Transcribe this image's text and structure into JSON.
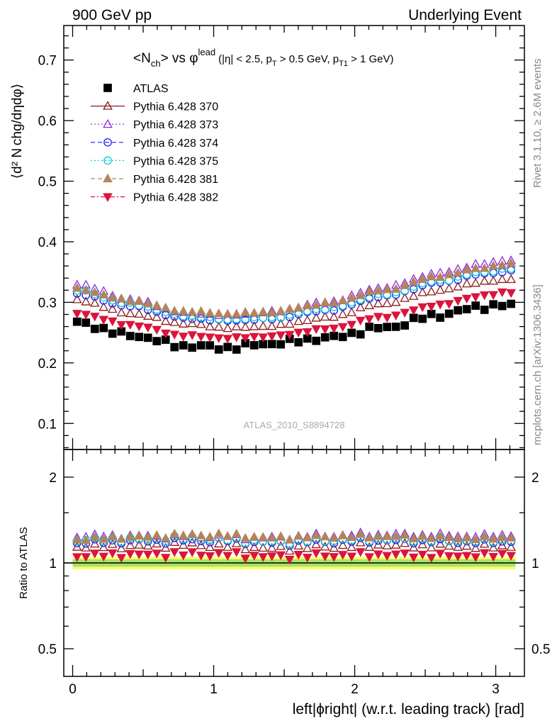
{
  "header": {
    "left": "900 GeV pp",
    "right": "Underlying Event"
  },
  "side_text": {
    "rivet": "Rivet 3.1.10, ≥ 2.6M events",
    "mcplots": "mcplots.cern.ch [arXiv:1306.3436]"
  },
  "watermark": "ATLAS_2010_S8894728",
  "plot_title": {
    "part1": "<N",
    "part1_sub": "ch",
    "part2": "> vs φ",
    "part2_sup": "lead",
    "cuts": "(|η| < 2.5, p",
    "cut_sub1": "T",
    "cuts2": " > 0.5 GeV, p",
    "cut_sub2": "T1",
    "cuts3": " > 1 GeV)"
  },
  "axes": {
    "ylabel_main": "⟨d² N chg/dηdφ⟩",
    "ylabel_ratio": "Ratio to ATLAS",
    "xlabel": "left|ϕright| (w.r.t. leading track) [rad]",
    "main_yticks": [
      "0.1",
      "0.2",
      "0.3",
      "0.4",
      "0.5",
      "0.6",
      "0.7"
    ],
    "ratio_yticks": [
      "0.5",
      "1",
      "2"
    ],
    "xticks": [
      "0",
      "1",
      "2",
      "3"
    ]
  },
  "chart_data": {
    "type": "scatter",
    "x_range": [
      -0.0628,
      3.2032
    ],
    "main_ylim": [
      0.057,
      0.757
    ],
    "ratio_ylim": [
      0.4,
      2.5
    ],
    "ratio_log": true,
    "grid": false,
    "legend_placement": "top-left",
    "x_start": 0.0314,
    "x_step": 0.0628,
    "n_points": 50,
    "series": [
      {
        "name": "ATLAS",
        "color": "#000000",
        "marker": "square",
        "line": "none",
        "control": [
          [
            0.03,
            0.266
          ],
          [
            0.4,
            0.246
          ],
          [
            0.8,
            0.228
          ],
          [
            1.1,
            0.225
          ],
          [
            1.4,
            0.232
          ],
          [
            1.8,
            0.241
          ],
          [
            2.2,
            0.258
          ],
          [
            2.6,
            0.279
          ],
          [
            2.9,
            0.293
          ],
          [
            3.11,
            0.295
          ]
        ]
      },
      {
        "name": "Pythia 6.428 370",
        "color": "#8b1a1a",
        "marker": "triangle-open",
        "line": "solid",
        "control": [
          [
            0.03,
            0.304
          ],
          [
            0.4,
            0.282
          ],
          [
            0.8,
            0.265
          ],
          [
            1.1,
            0.258
          ],
          [
            1.4,
            0.261
          ],
          [
            1.8,
            0.275
          ],
          [
            2.2,
            0.298
          ],
          [
            2.6,
            0.32
          ],
          [
            2.9,
            0.334
          ],
          [
            3.11,
            0.338
          ]
        ]
      },
      {
        "name": "Pythia 6.428 373",
        "color": "#8a2be2",
        "marker": "triangle-open",
        "line": "dotted",
        "control": [
          [
            0.03,
            0.33
          ],
          [
            0.4,
            0.305
          ],
          [
            0.8,
            0.283
          ],
          [
            1.1,
            0.279
          ],
          [
            1.4,
            0.284
          ],
          [
            1.8,
            0.3
          ],
          [
            2.2,
            0.324
          ],
          [
            2.6,
            0.348
          ],
          [
            2.9,
            0.363
          ],
          [
            3.11,
            0.37
          ]
        ]
      },
      {
        "name": "Pythia 6.428 374",
        "color": "#1a1aff",
        "marker": "circle-open",
        "line": "dashed",
        "control": [
          [
            0.03,
            0.314
          ],
          [
            0.4,
            0.294
          ],
          [
            0.8,
            0.274
          ],
          [
            1.1,
            0.27
          ],
          [
            1.4,
            0.273
          ],
          [
            1.8,
            0.287
          ],
          [
            2.2,
            0.31
          ],
          [
            2.6,
            0.333
          ],
          [
            2.9,
            0.347
          ],
          [
            3.11,
            0.352
          ]
        ]
      },
      {
        "name": "Pythia 6.428 375",
        "color": "#00ced1",
        "marker": "circle-open",
        "line": "dotted",
        "control": [
          [
            0.03,
            0.32
          ],
          [
            0.4,
            0.298
          ],
          [
            0.8,
            0.278
          ],
          [
            1.1,
            0.272
          ],
          [
            1.4,
            0.275
          ],
          [
            1.8,
            0.29
          ],
          [
            2.2,
            0.313
          ],
          [
            2.6,
            0.336
          ],
          [
            2.9,
            0.35
          ],
          [
            3.11,
            0.356
          ]
        ]
      },
      {
        "name": "Pythia 6.428 381",
        "color": "#b5835a",
        "marker": "triangle-filled",
        "line": "dashed",
        "control": [
          [
            0.03,
            0.322
          ],
          [
            0.4,
            0.303
          ],
          [
            0.8,
            0.285
          ],
          [
            1.1,
            0.281
          ],
          [
            1.4,
            0.284
          ],
          [
            1.8,
            0.298
          ],
          [
            2.2,
            0.32
          ],
          [
            2.6,
            0.343
          ],
          [
            2.9,
            0.357
          ],
          [
            3.11,
            0.363
          ]
        ]
      },
      {
        "name": "Pythia 6.428 382",
        "color": "#dc143c",
        "marker": "triangle-down-filled",
        "line": "dashdot",
        "control": [
          [
            0.03,
            0.282
          ],
          [
            0.4,
            0.263
          ],
          [
            0.8,
            0.245
          ],
          [
            1.1,
            0.241
          ],
          [
            1.4,
            0.244
          ],
          [
            1.8,
            0.256
          ],
          [
            2.2,
            0.276
          ],
          [
            2.6,
            0.296
          ],
          [
            2.9,
            0.311
          ],
          [
            3.11,
            0.317
          ]
        ]
      }
    ],
    "ratio_band": {
      "inner": [
        0.97,
        1.03
      ],
      "outer": [
        0.95,
        1.05
      ]
    }
  }
}
